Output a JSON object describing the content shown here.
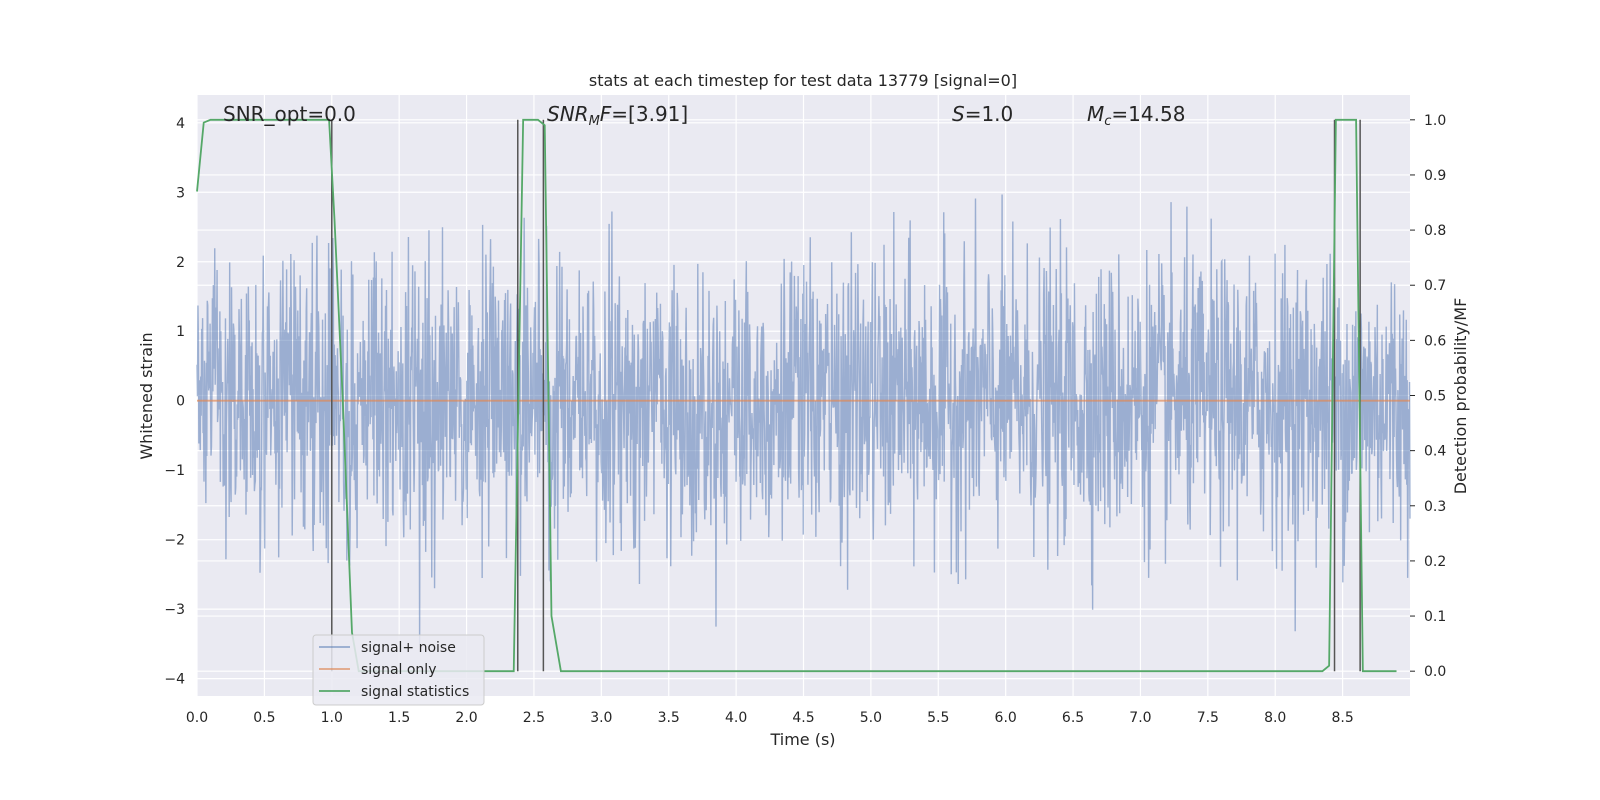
{
  "chart_data": {
    "type": "line",
    "title": "stats at each timestep for test data 13779 [signal=0]",
    "xlabel": "Time (s)",
    "ylabel_left": "Whitened strain",
    "ylabel_right": "Detection probability/MF",
    "xlim": [
      0.0,
      9.0
    ],
    "ylim_left": [
      -4.25,
      4.4
    ],
    "ylim_right": [
      -0.045,
      1.045
    ],
    "x_ticks": [
      "0.0",
      "0.5",
      "1.0",
      "1.5",
      "2.0",
      "2.5",
      "3.0",
      "3.5",
      "4.0",
      "4.5",
      "5.0",
      "5.5",
      "6.0",
      "6.5",
      "7.0",
      "7.5",
      "8.0",
      "8.5"
    ],
    "y_ticks_left": [
      "4",
      "3",
      "2",
      "1",
      "0",
      "−1",
      "−2",
      "−3",
      "−4"
    ],
    "y_ticks_right": [
      "1.0",
      "0.9",
      "0.8",
      "0.7",
      "0.6",
      "0.5",
      "0.4",
      "0.3",
      "0.2",
      "0.1",
      "0.0"
    ],
    "grid": true,
    "legend_position": "lower-left",
    "annotations": {
      "snr_opt": "SNR_opt=0.0",
      "snr_mf_main": "SNR",
      "snr_mf_sub": "M",
      "snr_mf_f": "F",
      "snr_mf_value": "=[3.91]",
      "s_var": "S",
      "s_value": "=1.0",
      "mc_var": "M",
      "mc_sub": "c",
      "mc_value": "=14.58"
    },
    "series": [
      {
        "name": "signal+ noise",
        "color": "#4c72b0",
        "description_type": "noise",
        "x_range": [
          0.0,
          9.0
        ],
        "amplitude_std": 1.0,
        "y_extent": [
          -3.9,
          3.95
        ]
      },
      {
        "name": "signal only",
        "color": "#dd8452",
        "x": [
          0.0,
          9.0
        ],
        "y": [
          0.0,
          0.0
        ]
      },
      {
        "name": "signal statistics",
        "color": "#55a868",
        "axis": "right",
        "x": [
          0.0,
          0.05,
          0.1,
          0.9,
          0.98,
          1.02,
          1.08,
          1.15,
          1.2,
          2.3,
          2.35,
          2.42,
          2.47,
          2.53,
          2.58,
          2.63,
          2.7,
          8.35,
          8.4,
          8.45,
          8.5,
          8.55,
          8.6,
          8.65,
          8.7,
          8.9
        ],
        "y": [
          0.87,
          0.995,
          1.0,
          1.0,
          1.0,
          0.82,
          0.5,
          0.07,
          0.0,
          0.0,
          0.0,
          1.0,
          1.0,
          1.0,
          0.99,
          0.1,
          0.0,
          0.0,
          0.01,
          1.0,
          1.0,
          1.0,
          1.0,
          0.0,
          0.0,
          0.0
        ]
      }
    ],
    "vertical_lines_x": [
      1.0,
      2.38,
      2.57,
      8.44,
      8.63
    ]
  }
}
